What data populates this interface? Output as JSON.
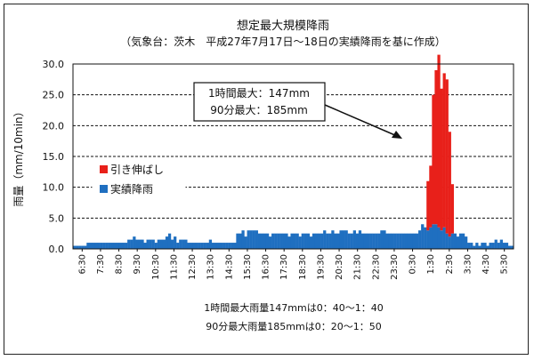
{
  "chart_data": {
    "type": "bar",
    "title": "想定最大規模降雨",
    "subtitle": "（気象台：茨木　平成27年7月17日～18日の実績降雨を基に作成）",
    "ylabel": "雨量（mm/10min）",
    "ylim": [
      0,
      30
    ],
    "yticks": [
      "0.0",
      "5.0",
      "10.0",
      "15.0",
      "20.0",
      "25.0",
      "30.0"
    ],
    "xticks": [
      "6:30",
      "7:30",
      "8:30",
      "9:30",
      "10:30",
      "11:30",
      "12:30",
      "13:30",
      "14:30",
      "15:30",
      "16:30",
      "17:30",
      "18:30",
      "19:30",
      "20:30",
      "21:30",
      "22:30",
      "23:30",
      "0:30",
      "1:30",
      "2:30",
      "3:30",
      "4:30",
      "5:30"
    ],
    "grid": true,
    "legend_position": "left",
    "series": [
      {
        "name": "実績降雨",
        "color": "#1f6fc0",
        "values": [
          0.5,
          0.5,
          0.5,
          0.5,
          0.5,
          1,
          1,
          1,
          1,
          1,
          1,
          1,
          1,
          1,
          1,
          1,
          1,
          1,
          1,
          1,
          1.5,
          1.5,
          2,
          1.5,
          1.5,
          1.5,
          1,
          1.5,
          1.5,
          1.5,
          1,
          1.5,
          1.5,
          1.5,
          2,
          2.5,
          1.5,
          2,
          1,
          1.5,
          1.5,
          1.5,
          1,
          1,
          1,
          1,
          1,
          1,
          1,
          1,
          1.5,
          1,
          1,
          1,
          1,
          1,
          1,
          1,
          1,
          1,
          2.5,
          2.5,
          3,
          2,
          3,
          3,
          3,
          3,
          2.5,
          2.5,
          2.5,
          2.5,
          2,
          2.5,
          2.5,
          2.5,
          2.5,
          2.5,
          2.5,
          2,
          2.5,
          2.5,
          2.5,
          2,
          2.5,
          2.5,
          2.5,
          2,
          2.5,
          2.5,
          2.5,
          2.5,
          3,
          2.5,
          2.5,
          3,
          2.5,
          2.5,
          3,
          3,
          3,
          2.5,
          2.5,
          3,
          2.5,
          3,
          2.5,
          2.5,
          2.5,
          2.5,
          2.5,
          2.5,
          2.5,
          3,
          3,
          2.5,
          2.5,
          2.5,
          2.5,
          2.5,
          2.5,
          2.5,
          2.5,
          2.5,
          2.5,
          2.5,
          2.5,
          3,
          4,
          3.5,
          3,
          3.5,
          4,
          4,
          3.5,
          3,
          3.5,
          2.5,
          2,
          2.5,
          2.5,
          2,
          2.5,
          2.5,
          2,
          1,
          1,
          0.5,
          1,
          0.5,
          1,
          1,
          0.5,
          1,
          1,
          1.5,
          1,
          1.5,
          1,
          1,
          0.5,
          0.5
        ]
      },
      {
        "name": "引き伸ばし",
        "color": "#e8201a",
        "values": [
          0,
          0,
          0,
          0,
          0,
          0,
          0,
          0,
          0,
          0,
          0,
          0,
          0,
          0,
          0,
          0,
          0,
          0,
          0,
          0,
          0,
          0,
          0,
          0,
          0,
          0,
          0,
          0,
          0,
          0,
          0,
          0,
          0,
          0,
          0,
          0,
          0,
          0,
          0,
          0,
          0,
          0,
          0,
          0,
          0,
          0,
          0,
          0,
          0,
          0,
          0,
          0,
          0,
          0,
          0,
          0,
          0,
          0,
          0,
          0,
          0,
          0,
          0,
          0,
          0,
          0,
          0,
          0,
          0,
          0,
          0,
          0,
          0,
          0,
          0,
          0,
          0,
          0,
          0,
          0,
          0,
          0,
          0,
          0,
          0,
          0,
          0,
          0,
          0,
          0,
          0,
          0,
          0,
          0,
          0,
          0,
          0,
          0,
          0,
          0,
          0,
          0,
          0,
          0,
          0,
          0,
          0,
          0,
          0,
          0,
          0,
          0,
          0,
          0,
          0,
          0,
          0,
          0,
          0,
          0,
          0,
          0,
          0,
          0,
          0,
          0,
          0,
          0,
          0,
          0,
          8,
          10,
          21,
          25,
          28,
          23,
          25,
          25,
          17,
          8,
          0,
          0,
          0,
          0,
          0,
          0,
          0,
          0,
          0,
          0,
          0,
          0,
          0,
          0,
          0,
          0,
          0,
          0,
          0,
          0,
          0,
          0,
          0,
          0,
          0,
          0,
          0,
          0,
          0
        ]
      }
    ],
    "callout": [
      "1時間最大：147mm",
      "90分最大：185mm"
    ],
    "notes": [
      "1時間最大雨量147mmは0：40～1：40",
      "90分最大雨量185mmは0：20～1：50"
    ]
  }
}
